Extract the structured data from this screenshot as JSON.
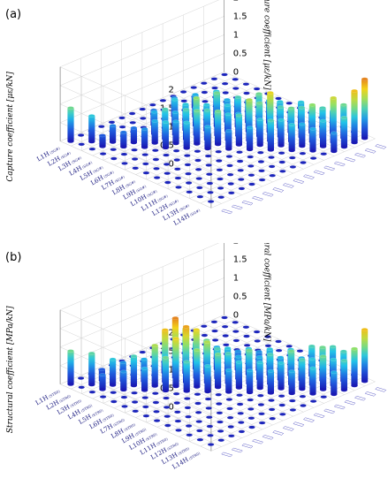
{
  "chart_data": [
    {
      "type": "bar3d",
      "panel_label": "(a)",
      "zlabel": "Capture coefficient [με/kN]",
      "zticks": [
        "0",
        "0.5",
        "1",
        "1.5",
        "2"
      ],
      "zlim": [
        0,
        2
      ],
      "rows": [
        {
          "main": "L1H",
          "sub": "(SG#)"
        },
        {
          "main": "L2H",
          "sub": "(SG#)"
        },
        {
          "main": "L3H",
          "sub": "(SG#)"
        },
        {
          "main": "L4H",
          "sub": "(SG#)"
        },
        {
          "main": "L5H",
          "sub": "(SG#)"
        },
        {
          "main": "L6H",
          "sub": "(SG#)"
        },
        {
          "main": "L7H",
          "sub": "(SG#)"
        },
        {
          "main": "L8H",
          "sub": "(SG#)"
        },
        {
          "main": "L9H",
          "sub": "(SG#)"
        },
        {
          "main": "L10H",
          "sub": "(SG#)"
        },
        {
          "main": "L11H",
          "sub": "(SG#)"
        },
        {
          "main": "L12H",
          "sub": "(SG#)"
        },
        {
          "main": "L13H",
          "sub": "(SG#)"
        },
        {
          "main": "L14H",
          "sub": "(SG#)"
        }
      ],
      "values": [
        [
          0.9,
          0.05,
          0.05,
          0.05,
          0.05,
          0.05,
          0.05,
          0.05,
          0.05,
          0.05,
          0.05,
          0.05,
          0.05,
          0.05,
          0.05,
          0.05
        ],
        [
          0.05,
          0.7,
          0.05,
          0.05,
          0.05,
          0.05,
          0.05,
          0.05,
          0.05,
          0.05,
          0.05,
          0.05,
          0.05,
          0.05,
          0.05,
          0.05
        ],
        [
          0.05,
          0.3,
          0.45,
          0.05,
          0.05,
          0.05,
          0.4,
          0.05,
          0.5,
          0.05,
          0.3,
          0.05,
          0.05,
          0.05,
          0.05,
          0.05
        ],
        [
          0.05,
          0.05,
          0.4,
          0.4,
          0.05,
          0.6,
          0.05,
          0.7,
          0.05,
          0.6,
          0.05,
          0.05,
          0.05,
          0.05,
          0.05,
          0.05
        ],
        [
          0.05,
          0.05,
          0.05,
          0.5,
          0.6,
          0.8,
          0.6,
          0.7,
          0.5,
          0.05,
          0.7,
          0.05,
          0.05,
          0.05,
          0.05,
          0.05
        ],
        [
          0.05,
          0.05,
          0.05,
          0.05,
          0.7,
          0.6,
          0.8,
          1.0,
          0.7,
          0.9,
          0.6,
          0.5,
          0.05,
          0.05,
          0.05,
          0.05
        ],
        [
          0.05,
          0.05,
          0.05,
          0.05,
          0.05,
          0.7,
          0.9,
          0.8,
          0.6,
          0.7,
          0.8,
          0.6,
          0.05,
          0.05,
          0.05,
          0.05
        ],
        [
          0.05,
          0.05,
          0.05,
          0.05,
          0.05,
          0.05,
          0.6,
          0.9,
          0.7,
          0.6,
          0.7,
          0.9,
          0.6,
          0.05,
          0.05,
          0.05
        ],
        [
          0.05,
          0.05,
          0.05,
          0.05,
          0.05,
          0.05,
          0.05,
          0.5,
          0.8,
          1.1,
          0.9,
          0.7,
          0.7,
          0.05,
          0.05,
          0.05
        ],
        [
          0.05,
          0.05,
          0.05,
          0.05,
          0.05,
          0.05,
          0.05,
          0.05,
          0.6,
          0.7,
          1.3,
          0.8,
          0.6,
          0.7,
          0.05,
          0.05
        ],
        [
          0.05,
          0.05,
          0.05,
          0.05,
          0.05,
          0.05,
          0.05,
          0.05,
          0.05,
          0.8,
          0.7,
          0.9,
          0.8,
          0.6,
          0.05,
          0.05
        ],
        [
          0.05,
          0.05,
          0.05,
          0.05,
          0.05,
          0.05,
          0.05,
          0.05,
          0.05,
          0.05,
          0.7,
          0.6,
          1.0,
          0.8,
          0.6,
          0.05
        ],
        [
          0.05,
          0.05,
          0.05,
          0.05,
          0.05,
          0.05,
          0.05,
          0.05,
          0.05,
          0.05,
          0.05,
          0.6,
          0.7,
          1.2,
          0.9,
          0.05
        ],
        [
          0.05,
          0.05,
          0.05,
          0.05,
          0.05,
          0.05,
          0.05,
          0.05,
          0.05,
          0.05,
          0.05,
          0.05,
          0.5,
          0.8,
          1.4,
          1.6
        ]
      ]
    },
    {
      "type": "bar3d",
      "panel_label": "(b)",
      "zlabel": "Structural coefficient [MPa/kN]",
      "zticks": [
        "0",
        "0.5",
        "1",
        "1.5",
        "2"
      ],
      "zlim": [
        0,
        2
      ],
      "rows": [
        {
          "main": "L1H",
          "sub": "(STR0)"
        },
        {
          "main": "L2H",
          "sub": "(STR0)"
        },
        {
          "main": "L3H",
          "sub": "(STR0)"
        },
        {
          "main": "L4H",
          "sub": "(STR0)"
        },
        {
          "main": "L5H",
          "sub": "(STR0)"
        },
        {
          "main": "L6H",
          "sub": "(STR0)"
        },
        {
          "main": "L7H",
          "sub": "(STR0)"
        },
        {
          "main": "L8H",
          "sub": "(STR0)"
        },
        {
          "main": "L9H",
          "sub": "(STR0)"
        },
        {
          "main": "L10H",
          "sub": "(STR0)"
        },
        {
          "main": "L11H",
          "sub": "(STR0)"
        },
        {
          "main": "L12H",
          "sub": "(STR0)"
        },
        {
          "main": "L13H",
          "sub": "(STR0)"
        },
        {
          "main": "L14H",
          "sub": "(STR0)"
        }
      ],
      "values": [
        [
          0.9,
          0.05,
          0.05,
          0.05,
          0.05,
          0.05,
          0.05,
          0.05,
          0.05,
          0.05,
          0.05,
          0.05,
          0.05,
          0.05,
          0.05,
          0.05
        ],
        [
          0.05,
          0.85,
          0.3,
          0.05,
          0.05,
          0.05,
          0.05,
          0.05,
          0.05,
          0.05,
          0.05,
          0.05,
          0.05,
          0.05,
          0.05,
          0.05
        ],
        [
          0.05,
          0.4,
          0.7,
          0.5,
          0.05,
          0.05,
          0.05,
          0.05,
          0.05,
          0.05,
          0.05,
          0.05,
          0.05,
          0.05,
          0.05,
          0.05
        ],
        [
          0.05,
          0.05,
          0.5,
          0.8,
          0.6,
          0.05,
          0.3,
          0.05,
          0.05,
          0.05,
          0.05,
          0.05,
          0.05,
          0.05,
          0.05,
          0.05
        ],
        [
          0.05,
          0.05,
          0.05,
          0.6,
          1.1,
          1.4,
          1.6,
          1.2,
          0.7,
          0.05,
          0.05,
          0.05,
          0.05,
          0.05,
          0.05,
          0.05
        ],
        [
          0.05,
          0.05,
          0.05,
          0.05,
          0.9,
          1.3,
          1.5,
          1.3,
          0.9,
          0.6,
          0.05,
          0.05,
          0.05,
          0.05,
          0.05,
          0.05
        ],
        [
          0.05,
          0.05,
          0.05,
          0.05,
          0.05,
          0.8,
          1.0,
          1.1,
          0.8,
          0.7,
          0.5,
          0.05,
          0.05,
          0.05,
          0.05,
          0.05
        ],
        [
          0.05,
          0.05,
          0.05,
          0.05,
          0.05,
          0.05,
          0.7,
          0.9,
          0.8,
          0.6,
          0.7,
          0.5,
          0.05,
          0.05,
          0.05,
          0.05
        ],
        [
          0.05,
          0.05,
          0.05,
          0.05,
          0.05,
          0.05,
          0.05,
          0.6,
          0.7,
          0.9,
          0.6,
          0.7,
          0.05,
          0.05,
          0.05,
          0.05
        ],
        [
          0.05,
          0.05,
          0.05,
          0.05,
          0.05,
          0.05,
          0.05,
          0.05,
          0.6,
          0.7,
          0.8,
          0.6,
          0.7,
          0.05,
          0.05,
          0.05
        ],
        [
          0.05,
          0.05,
          0.05,
          0.05,
          0.05,
          0.05,
          0.05,
          0.05,
          0.05,
          0.6,
          0.7,
          0.9,
          0.6,
          0.8,
          0.05,
          0.05
        ],
        [
          0.05,
          0.05,
          0.05,
          0.05,
          0.05,
          0.05,
          0.05,
          0.05,
          0.05,
          0.05,
          0.6,
          0.8,
          0.7,
          0.9,
          0.8,
          0.05
        ],
        [
          0.05,
          0.05,
          0.05,
          0.05,
          0.05,
          0.05,
          0.05,
          0.05,
          0.05,
          0.05,
          0.05,
          0.7,
          0.9,
          0.7,
          0.8,
          0.05
        ],
        [
          0.05,
          0.05,
          0.05,
          0.05,
          0.05,
          0.05,
          0.05,
          0.05,
          0.05,
          0.05,
          0.05,
          0.05,
          0.6,
          0.8,
          1.0,
          1.4
        ]
      ]
    }
  ],
  "colormap": [
    "#1a1ab4",
    "#1f5fe0",
    "#22c4e8",
    "#8ee06a",
    "#f2d31a",
    "#e2711f",
    "#a8201a"
  ]
}
